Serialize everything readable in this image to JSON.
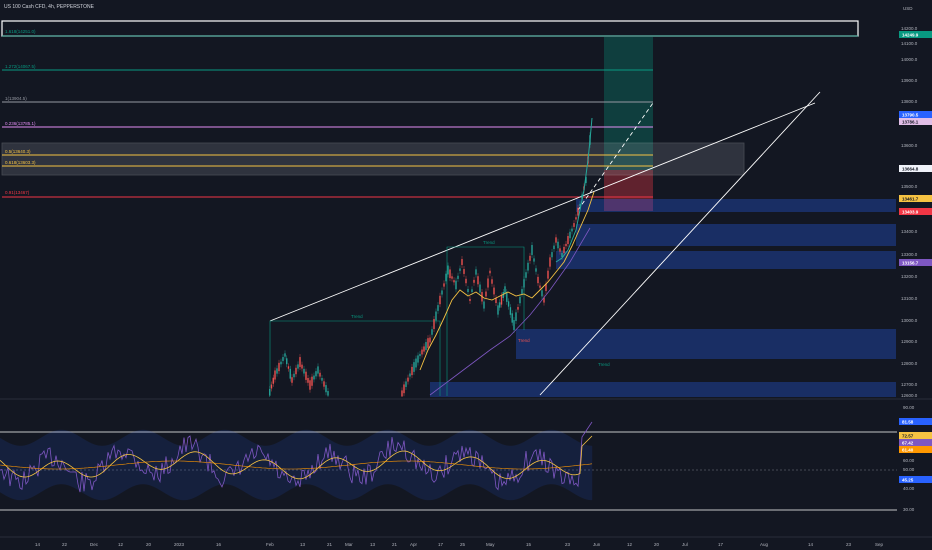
{
  "header": {
    "symbol": "US 100 Cash CFD, 4h, PEPPERSTONE"
  },
  "axis": {
    "price_label": "USD",
    "price_ticks": [
      "14200.0",
      "14100.0",
      "14000.0",
      "13900.0",
      "13800.0",
      "13700.0",
      "13600.0",
      "13500.0",
      "13400.0",
      "13300.0",
      "13200.0",
      "13100.0",
      "13000.0",
      "12900.0",
      "12800.0",
      "12700.0",
      "12600.0"
    ],
    "time_ticks": [
      "14",
      "22",
      "Dec",
      "12",
      "20",
      "2023",
      "16",
      "Feb",
      "13",
      "21",
      "Mar",
      "13",
      "21",
      "Apr",
      "17",
      "25",
      "May",
      "15",
      "23",
      "Jun",
      "12",
      "20",
      "Jul",
      "17",
      "Aug",
      "14",
      "23",
      "Sep"
    ],
    "rsi_ticks": [
      "90.00",
      "70.00",
      "60.00",
      "50.00",
      "40.00",
      "30.00"
    ]
  },
  "fib_levels": [
    {
      "label": "1.618(14251.0)",
      "color": "#089981"
    },
    {
      "label": "1.272(14067.5)",
      "color": "#089981"
    },
    {
      "label": "1(13904.5)",
      "color": "#9598a1"
    },
    {
      "label": "0.236(13785.1)",
      "color": "#e38df4"
    },
    {
      "label": "0.5(13640.3)",
      "color": "#f6c343"
    },
    {
      "label": "0.618(13603.3)",
      "color": "#f6c343"
    },
    {
      "label": "0.91(13467)",
      "color": "#f23645"
    }
  ],
  "price_tags": [
    {
      "text": "14249.9",
      "bg": "#089981",
      "fg": "#ffffff"
    },
    {
      "text": "13790.5",
      "bg": "#2962ff",
      "fg": "#ffffff"
    },
    {
      "text": "13786.1",
      "bg": "#e1bee7",
      "fg": "#131722"
    },
    {
      "text": "13664.8",
      "bg": "#f0f3fa",
      "fg": "#131722"
    },
    {
      "text": "13461.7",
      "bg": "#f6c343",
      "fg": "#131722"
    },
    {
      "text": "13403.9",
      "bg": "#f23645",
      "fg": "#ffffff"
    },
    {
      "text": "13156.7",
      "bg": "#7e57c2",
      "fg": "#ffffff"
    }
  ],
  "rsi_tags": [
    {
      "text": "81.58",
      "bg": "#2962ff"
    },
    {
      "text": "72.57",
      "bg": "#f6c343"
    },
    {
      "text": "67.42",
      "bg": "#7e57c2"
    },
    {
      "text": "61.40",
      "bg": "#ff9800"
    },
    {
      "text": "45.25",
      "bg": "#2962ff"
    }
  ],
  "annotations": [
    "Trend",
    "Trend",
    "Trend",
    "Trend"
  ],
  "colors": {
    "bg": "#131722",
    "up": "#26a69a",
    "down": "#ef5350",
    "rsi": "#7e57c2",
    "rsi_ma": "#f6c343",
    "band": "#2962ff"
  },
  "chart_data": {
    "type": "line",
    "title": "US 100 Cash CFD, 4h, PEPPERSTONE",
    "price_series_approx": [
      {
        "date": "2023-02-01",
        "value": 12600
      },
      {
        "date": "2023-03-01",
        "value": 12750
      },
      {
        "date": "2023-03-20",
        "value": 12600
      },
      {
        "date": "2023-04-01",
        "value": 13050
      },
      {
        "date": "2023-04-17",
        "value": 13100
      },
      {
        "date": "2023-04-25",
        "value": 13000
      },
      {
        "date": "2023-05-01",
        "value": 12950
      },
      {
        "date": "2023-05-08",
        "value": 13200
      },
      {
        "date": "2023-05-15",
        "value": 13250
      },
      {
        "date": "2023-05-20",
        "value": 13500
      },
      {
        "date": "2023-05-26",
        "value": 13800
      }
    ],
    "ylim": [
      12550,
      14280
    ]
  }
}
